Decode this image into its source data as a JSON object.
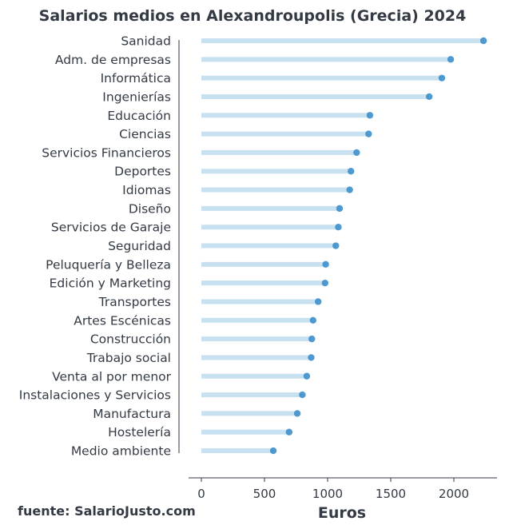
{
  "chart_data": {
    "type": "lollipop",
    "title": "Salarios medios en Alexandroupolis (Grecia) 2024",
    "xlabel": "Euros",
    "ylabel": "",
    "xlim": [
      0,
      2300
    ],
    "xticks": [
      0,
      500,
      1000,
      1500,
      2000
    ],
    "xtick_labels": [
      "0",
      "500",
      "1000",
      "1500",
      "2000"
    ],
    "grid": false,
    "categories": [
      "Sanidad",
      "Adm. de empresas",
      "Informática",
      "Ingenierías",
      "Educación",
      "Ciencias",
      "Servicios Financieros",
      "Deportes",
      "Idiomas",
      "Diseño",
      "Servicios de Garaje",
      "Seguridad",
      "Peluquería y Belleza",
      "Edición y Marketing",
      "Transportes",
      "Artes Escénicas",
      "Construcción",
      "Trabajo social",
      "Venta al por menor",
      "Instalaciones y Servicios",
      "Manufactura",
      "Hostelería",
      "Medio ambiente"
    ],
    "values": [
      2235,
      1975,
      1905,
      1805,
      1335,
      1325,
      1230,
      1185,
      1175,
      1095,
      1085,
      1065,
      985,
      980,
      925,
      885,
      875,
      870,
      835,
      800,
      760,
      695,
      570
    ],
    "colors": {
      "line": "#c8e1f1",
      "dot": "#3d8fcb",
      "axis": "#333a44"
    }
  },
  "footer": {
    "source": "fuente: SalarioJusto.com"
  }
}
